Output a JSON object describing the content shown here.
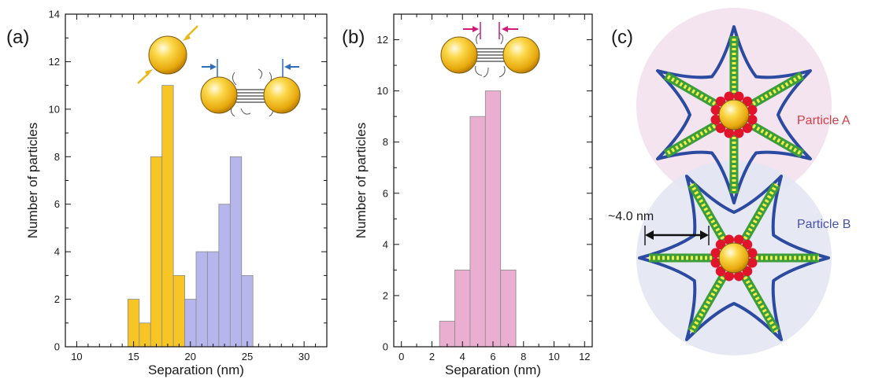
{
  "panels": {
    "a": "(a)",
    "b": "(b)",
    "c": "(c)"
  },
  "colors": {
    "yellow": "#f7c626",
    "blue_purple": "#b6b6ec",
    "pink": "#e9aed0",
    "bar_edge": "#8a8a8a",
    "dna_green": "#3c9e3a",
    "dna_yellow": "#f2ee4a",
    "arm_blue": "#2c4aa0",
    "bead_red": "#e0142b",
    "halo_a": "#f3e4f0",
    "halo_b": "#e4e6f3",
    "label_a": "#d0404a",
    "label_b": "#4a52a8"
  },
  "chart_data": [
    {
      "type": "bar",
      "xlabel": "Separation (nm)",
      "ylabel": "Number of particles",
      "xlim": [
        9,
        32
      ],
      "ylim": [
        0,
        14
      ],
      "xticks": [
        "10",
        "15",
        "20",
        "25",
        "30"
      ],
      "yticks": [
        "0",
        "2",
        "4",
        "6",
        "8",
        "10",
        "12",
        "14"
      ],
      "bin_width": 1,
      "series": [
        {
          "color": "#f7c626",
          "x": [
            15,
            16,
            17,
            18,
            19,
            20
          ],
          "values": [
            2,
            1,
            8,
            11,
            3,
            1
          ]
        },
        {
          "color": "#b6b6ec",
          "x": [
            20,
            21,
            22,
            23,
            24,
            25
          ],
          "values": [
            2,
            4,
            4,
            6,
            8,
            3
          ]
        }
      ]
    },
    {
      "type": "bar",
      "xlabel": "Separation (nm)",
      "ylabel": "Number of particles",
      "xlim": [
        -0.5,
        12.5
      ],
      "ylim": [
        0,
        13
      ],
      "xticks": [
        "0",
        "2",
        "4",
        "6",
        "8",
        "10",
        "12"
      ],
      "yticks": [
        "0",
        "2",
        "4",
        "6",
        "8",
        "10",
        "12"
      ],
      "bin_width": 1,
      "series": [
        {
          "color": "#e9aed0",
          "x": [
            3,
            4,
            5,
            6,
            7
          ],
          "values": [
            1,
            3,
            9,
            10,
            3
          ]
        }
      ]
    }
  ],
  "diagram_c": {
    "particle_a": "Particle A",
    "particle_b": "Particle B",
    "measurement": "~4.0 nm"
  }
}
